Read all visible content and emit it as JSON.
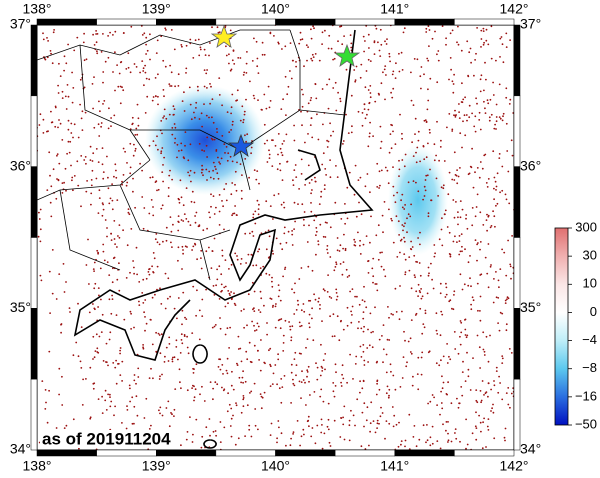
{
  "map": {
    "lon_labels": [
      "138°",
      "139°",
      "140°",
      "141°",
      "142°"
    ],
    "lat_labels": [
      "37°",
      "36°",
      "35°",
      "34°"
    ],
    "colorbar_labels": [
      "300",
      "30",
      "10",
      "0",
      "−4",
      "−8",
      "−16",
      "−50"
    ],
    "annotation": "as of 201911204"
  }
}
